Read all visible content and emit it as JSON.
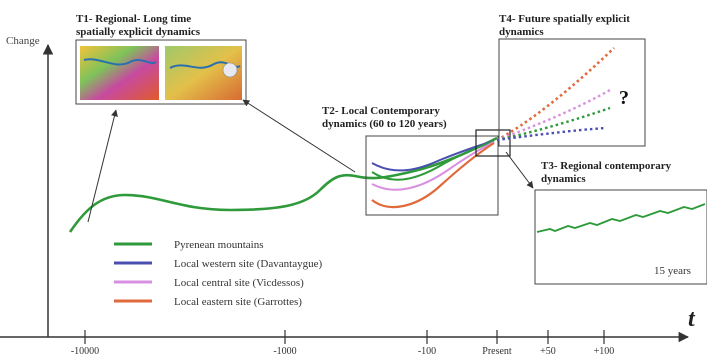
{
  "y_axis_label": "Change",
  "x_axis_label": "t",
  "ticks": [
    "-10000",
    "-1000",
    "-100",
    "Present",
    "+50",
    "+100"
  ],
  "panels": {
    "t1": {
      "title_line1": "T1- Regional- Long time",
      "title_line2": "spatially explicit dynamics"
    },
    "t2": {
      "title_line1": "T2- Local Contemporary",
      "title_line2": "dynamics (60 to 120 years)"
    },
    "t3": {
      "title_line1": "T3- Regional contemporary",
      "title_line2": "dynamics",
      "duration_label": "15 years"
    },
    "t4": {
      "title_line1": "T4- Future spatially explicit",
      "title_line2": "dynamics",
      "unknown_marker": "?"
    }
  },
  "legend": [
    {
      "label": "Pyrenean mountains",
      "color": "#2e9a3a"
    },
    {
      "label": "Local western site (Davantaygue)",
      "color": "#4a4fb0"
    },
    {
      "label": "Local central site (Vicdessos)",
      "color": "#d98fe0"
    },
    {
      "label": "Local eastern site (Garrottes)",
      "color": "#e06a3c"
    }
  ]
}
